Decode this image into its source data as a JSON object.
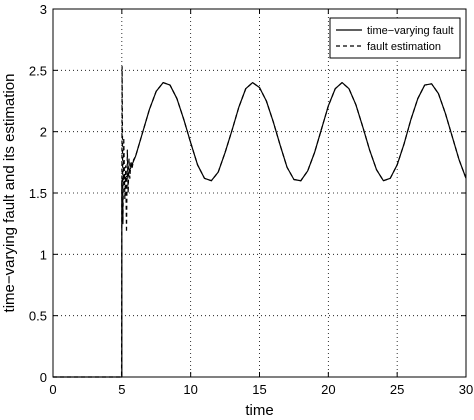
{
  "chart_data": {
    "type": "line",
    "title": "",
    "xlabel": "time",
    "ylabel": "time−varying fault and its estimation",
    "xlim": [
      0,
      30
    ],
    "ylim": [
      0,
      3
    ],
    "xticks": [
      0,
      5,
      10,
      15,
      20,
      25,
      30
    ],
    "yticks": [
      0,
      0.5,
      1,
      1.5,
      2,
      2.5,
      3
    ],
    "xtick_labels": [
      "0",
      "5",
      "10",
      "15",
      "20",
      "25",
      "30"
    ],
    "ytick_labels": [
      "0",
      "0.5",
      "1",
      "1.5",
      "2",
      "2.5",
      "3"
    ],
    "grid": true,
    "grid_style": "dotted",
    "legend_position": "top-right",
    "series": [
      {
        "name": "time−varying fault",
        "line_style": "solid",
        "color": "#000000",
        "points": [
          [
            0,
            0
          ],
          [
            5,
            0
          ],
          [
            5,
            1.6
          ],
          [
            5.4,
            1.64
          ],
          [
            6,
            1.8
          ],
          [
            6.5,
            1.99
          ],
          [
            7,
            2.18
          ],
          [
            7.5,
            2.33
          ],
          [
            8,
            2.4
          ],
          [
            8.5,
            2.38
          ],
          [
            9,
            2.27
          ],
          [
            9.5,
            2.1
          ],
          [
            10,
            1.91
          ],
          [
            10.5,
            1.73
          ],
          [
            11,
            1.62
          ],
          [
            11.5,
            1.6
          ],
          [
            12,
            1.67
          ],
          [
            12.5,
            1.83
          ],
          [
            13,
            2.01
          ],
          [
            13.5,
            2.2
          ],
          [
            14,
            2.35
          ],
          [
            14.5,
            2.4
          ],
          [
            15,
            2.36
          ],
          [
            15.5,
            2.25
          ],
          [
            16,
            2.08
          ],
          [
            16.5,
            1.89
          ],
          [
            17,
            1.71
          ],
          [
            17.5,
            1.61
          ],
          [
            18,
            1.6
          ],
          [
            18.5,
            1.68
          ],
          [
            19,
            1.83
          ],
          [
            19.5,
            2.02
          ],
          [
            20,
            2.21
          ],
          [
            20.5,
            2.35
          ],
          [
            21,
            2.4
          ],
          [
            21.5,
            2.35
          ],
          [
            22,
            2.22
          ],
          [
            22.5,
            2.04
          ],
          [
            23,
            1.85
          ],
          [
            23.5,
            1.69
          ],
          [
            24,
            1.6
          ],
          [
            24.5,
            1.62
          ],
          [
            25,
            1.73
          ],
          [
            25.5,
            1.9
          ],
          [
            26,
            2.1
          ],
          [
            26.5,
            2.27
          ],
          [
            27,
            2.38
          ],
          [
            27.5,
            2.39
          ],
          [
            28,
            2.31
          ],
          [
            28.5,
            2.15
          ],
          [
            29,
            1.96
          ],
          [
            29.5,
            1.77
          ],
          [
            30,
            1.62
          ]
        ]
      },
      {
        "name": "fault estimation",
        "line_style": "dashed",
        "color": "#000000",
        "points": [
          [
            0,
            0
          ],
          [
            4.98,
            0
          ],
          [
            5.02,
            2.53
          ],
          [
            5.08,
            1.25
          ],
          [
            5.14,
            1.95
          ],
          [
            5.22,
            1.45
          ],
          [
            5.28,
            1.72
          ],
          [
            5.34,
            1.18
          ],
          [
            5.4,
            1.85
          ],
          [
            5.46,
            1.5
          ],
          [
            5.52,
            1.78
          ],
          [
            5.58,
            1.62
          ],
          [
            5.66,
            1.76
          ],
          [
            5.74,
            1.7
          ],
          [
            5.85,
            1.77
          ],
          [
            6,
            1.8
          ],
          [
            6.5,
            1.99
          ],
          [
            7,
            2.18
          ],
          [
            7.5,
            2.33
          ],
          [
            8,
            2.4
          ],
          [
            8.5,
            2.38
          ],
          [
            9,
            2.27
          ],
          [
            9.5,
            2.1
          ],
          [
            10,
            1.91
          ],
          [
            10.5,
            1.73
          ],
          [
            11,
            1.62
          ],
          [
            11.5,
            1.6
          ],
          [
            12,
            1.67
          ],
          [
            12.5,
            1.83
          ],
          [
            13,
            2.01
          ],
          [
            13.5,
            2.2
          ],
          [
            14,
            2.35
          ],
          [
            14.5,
            2.4
          ],
          [
            15,
            2.36
          ],
          [
            15.5,
            2.25
          ],
          [
            16,
            2.08
          ],
          [
            16.5,
            1.89
          ],
          [
            17,
            1.71
          ],
          [
            17.5,
            1.61
          ],
          [
            18,
            1.6
          ],
          [
            18.5,
            1.68
          ],
          [
            19,
            1.83
          ],
          [
            19.5,
            2.02
          ],
          [
            20,
            2.21
          ],
          [
            20.5,
            2.35
          ],
          [
            21,
            2.4
          ],
          [
            21.5,
            2.35
          ],
          [
            22,
            2.22
          ],
          [
            22.5,
            2.04
          ],
          [
            23,
            1.85
          ],
          [
            23.5,
            1.69
          ],
          [
            24,
            1.6
          ],
          [
            24.5,
            1.62
          ],
          [
            25,
            1.73
          ],
          [
            25.5,
            1.9
          ],
          [
            26,
            2.1
          ],
          [
            26.5,
            2.27
          ],
          [
            27,
            2.38
          ],
          [
            27.5,
            2.39
          ],
          [
            28,
            2.31
          ],
          [
            28.5,
            2.15
          ],
          [
            29,
            1.96
          ],
          [
            29.5,
            1.77
          ],
          [
            30,
            1.62
          ]
        ]
      }
    ]
  }
}
